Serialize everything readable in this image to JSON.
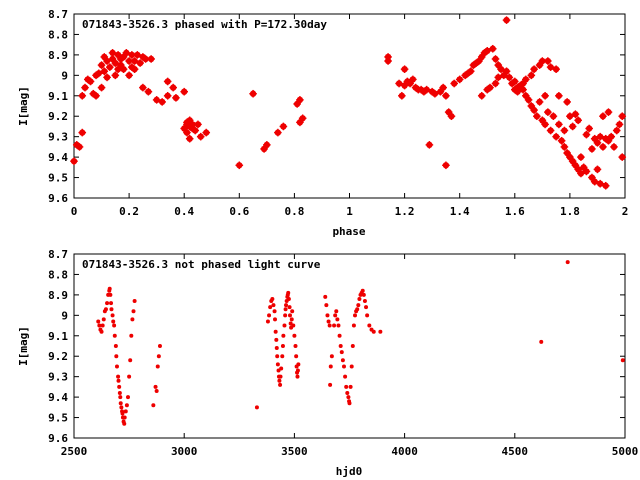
{
  "chart_data": [
    {
      "type": "scatter",
      "title": "071843-3526.3 phased with P=172.30day",
      "xlabel": "phase",
      "ylabel": "I[mag]",
      "xlim": [
        0,
        2
      ],
      "ylim": [
        9.6,
        8.7
      ],
      "y_inverted": true,
      "grid": false,
      "xticks": [
        "0",
        "0.2",
        "0.4",
        "0.6",
        "0.8",
        "1",
        "1.2",
        "1.4",
        "1.6",
        "1.8",
        "2"
      ],
      "yticks": [
        "8.7",
        "8.8",
        "8.9",
        "9",
        "9.1",
        "9.2",
        "9.3",
        "9.4",
        "9.5",
        "9.6"
      ],
      "marker_color": "#ee0000",
      "points": [
        [
          0.0,
          9.42
        ],
        [
          0.01,
          9.34
        ],
        [
          0.02,
          9.35
        ],
        [
          0.03,
          9.28
        ],
        [
          0.03,
          9.1
        ],
        [
          0.04,
          9.06
        ],
        [
          0.05,
          9.02
        ],
        [
          0.06,
          9.03
        ],
        [
          0.07,
          9.09
        ],
        [
          0.08,
          9.0
        ],
        [
          0.08,
          9.1
        ],
        [
          0.09,
          8.99
        ],
        [
          0.1,
          9.06
        ],
        [
          0.1,
          8.95
        ],
        [
          0.11,
          8.98
        ],
        [
          0.11,
          8.91
        ],
        [
          0.12,
          9.01
        ],
        [
          0.12,
          8.93
        ],
        [
          0.13,
          8.96
        ],
        [
          0.14,
          8.92
        ],
        [
          0.14,
          8.89
        ],
        [
          0.15,
          9.0
        ],
        [
          0.15,
          8.94
        ],
        [
          0.16,
          8.9
        ],
        [
          0.16,
          8.97
        ],
        [
          0.17,
          8.95
        ],
        [
          0.17,
          8.92
        ],
        [
          0.18,
          8.91
        ],
        [
          0.18,
          8.97
        ],
        [
          0.19,
          8.89
        ],
        [
          0.2,
          8.93
        ],
        [
          0.2,
          9.0
        ],
        [
          0.21,
          8.96
        ],
        [
          0.21,
          8.9
        ],
        [
          0.22,
          8.93
        ],
        [
          0.22,
          8.97
        ],
        [
          0.23,
          8.9
        ],
        [
          0.24,
          8.94
        ],
        [
          0.25,
          8.91
        ],
        [
          0.25,
          9.06
        ],
        [
          0.26,
          8.92
        ],
        [
          0.27,
          9.08
        ],
        [
          0.28,
          8.92
        ],
        [
          0.3,
          9.12
        ],
        [
          0.32,
          9.13
        ],
        [
          0.34,
          9.1
        ],
        [
          0.34,
          9.03
        ],
        [
          0.36,
          9.06
        ],
        [
          0.37,
          9.11
        ],
        [
          0.4,
          9.08
        ],
        [
          0.4,
          9.26
        ],
        [
          0.41,
          9.23
        ],
        [
          0.41,
          9.28
        ],
        [
          0.41,
          9.24
        ],
        [
          0.42,
          9.25
        ],
        [
          0.42,
          9.31
        ],
        [
          0.42,
          9.22
        ],
        [
          0.43,
          9.26
        ],
        [
          0.43,
          9.24
        ],
        [
          0.44,
          9.27
        ],
        [
          0.45,
          9.24
        ],
        [
          0.46,
          9.3
        ],
        [
          0.48,
          9.28
        ],
        [
          0.6,
          9.44
        ],
        [
          0.65,
          9.09
        ],
        [
          0.69,
          9.36
        ],
        [
          0.7,
          9.34
        ],
        [
          0.74,
          9.28
        ],
        [
          0.76,
          9.25
        ],
        [
          0.81,
          9.14
        ],
        [
          0.82,
          9.23
        ],
        [
          0.82,
          9.12
        ],
        [
          0.83,
          9.21
        ],
        [
          1.14,
          8.91
        ],
        [
          1.14,
          8.93
        ],
        [
          1.18,
          9.04
        ],
        [
          1.19,
          9.1
        ],
        [
          1.2,
          8.97
        ],
        [
          1.2,
          9.05
        ],
        [
          1.21,
          9.03
        ],
        [
          1.22,
          9.04
        ],
        [
          1.23,
          9.02
        ],
        [
          1.24,
          9.06
        ],
        [
          1.25,
          9.07
        ],
        [
          1.26,
          9.07
        ],
        [
          1.27,
          9.08
        ],
        [
          1.28,
          9.07
        ],
        [
          1.29,
          9.34
        ],
        [
          1.3,
          9.08
        ],
        [
          1.31,
          9.09
        ],
        [
          1.33,
          9.08
        ],
        [
          1.34,
          9.06
        ],
        [
          1.35,
          9.1
        ],
        [
          1.35,
          9.44
        ],
        [
          1.36,
          9.18
        ],
        [
          1.37,
          9.2
        ],
        [
          1.38,
          9.04
        ],
        [
          1.4,
          9.02
        ],
        [
          1.42,
          9.0
        ],
        [
          1.43,
          8.99
        ],
        [
          1.44,
          8.98
        ],
        [
          1.45,
          8.95
        ],
        [
          1.46,
          8.94
        ],
        [
          1.47,
          8.93
        ],
        [
          1.48,
          8.91
        ],
        [
          1.48,
          9.1
        ],
        [
          1.49,
          8.89
        ],
        [
          1.5,
          9.07
        ],
        [
          1.5,
          8.88
        ],
        [
          1.51,
          9.06
        ],
        [
          1.52,
          8.87
        ],
        [
          1.53,
          9.04
        ],
        [
          1.53,
          8.92
        ],
        [
          1.54,
          8.95
        ],
        [
          1.54,
          9.01
        ],
        [
          1.55,
          8.97
        ],
        [
          1.56,
          9.0
        ],
        [
          1.57,
          8.98
        ],
        [
          1.57,
          8.73
        ],
        [
          1.58,
          9.01
        ],
        [
          1.59,
          9.04
        ],
        [
          1.6,
          9.07
        ],
        [
          1.6,
          9.03
        ],
        [
          1.61,
          9.06
        ],
        [
          1.61,
          9.08
        ],
        [
          1.62,
          9.05
        ],
        [
          1.63,
          9.07
        ],
        [
          1.63,
          9.04
        ],
        [
          1.64,
          9.1
        ],
        [
          1.64,
          9.02
        ],
        [
          1.65,
          9.12
        ],
        [
          1.66,
          9.15
        ],
        [
          1.66,
          9.0
        ],
        [
          1.67,
          9.17
        ],
        [
          1.67,
          8.97
        ],
        [
          1.68,
          9.2
        ],
        [
          1.69,
          8.95
        ],
        [
          1.69,
          9.13
        ],
        [
          1.7,
          9.22
        ],
        [
          1.7,
          8.93
        ],
        [
          1.71,
          9.24
        ],
        [
          1.71,
          9.1
        ],
        [
          1.72,
          8.93
        ],
        [
          1.72,
          9.18
        ],
        [
          1.73,
          9.27
        ],
        [
          1.73,
          8.96
        ],
        [
          1.74,
          9.2
        ],
        [
          1.75,
          9.3
        ],
        [
          1.75,
          8.97
        ],
        [
          1.76,
          9.24
        ],
        [
          1.76,
          9.1
        ],
        [
          1.77,
          9.32
        ],
        [
          1.78,
          9.27
        ],
        [
          1.78,
          9.35
        ],
        [
          1.79,
          9.38
        ],
        [
          1.79,
          9.13
        ],
        [
          1.8,
          9.4
        ],
        [
          1.8,
          9.2
        ],
        [
          1.81,
          9.42
        ],
        [
          1.81,
          9.25
        ],
        [
          1.82,
          9.44
        ],
        [
          1.82,
          9.19
        ],
        [
          1.83,
          9.46
        ],
        [
          1.83,
          9.22
        ],
        [
          1.84,
          9.4
        ],
        [
          1.84,
          9.48
        ],
        [
          1.85,
          9.45
        ],
        [
          1.86,
          9.29
        ],
        [
          1.86,
          9.47
        ],
        [
          1.87,
          9.26
        ],
        [
          1.88,
          9.5
        ],
        [
          1.88,
          9.36
        ],
        [
          1.89,
          9.31
        ],
        [
          1.89,
          9.52
        ],
        [
          1.9,
          9.33
        ],
        [
          1.9,
          9.46
        ],
        [
          1.91,
          9.53
        ],
        [
          1.91,
          9.3
        ],
        [
          1.92,
          9.35
        ],
        [
          1.92,
          9.2
        ],
        [
          1.93,
          9.31
        ],
        [
          1.93,
          9.54
        ],
        [
          1.94,
          9.32
        ],
        [
          1.94,
          9.18
        ],
        [
          1.95,
          9.3
        ],
        [
          1.96,
          9.35
        ],
        [
          1.97,
          9.27
        ],
        [
          1.98,
          9.24
        ],
        [
          1.99,
          9.4
        ],
        [
          1.99,
          9.2
        ]
      ]
    },
    {
      "type": "scatter",
      "title": "071843-3526.3 not phased light curve",
      "xlabel": "hjd0",
      "ylabel": "I[mag]",
      "xlim": [
        2500,
        5000
      ],
      "ylim": [
        9.6,
        8.7
      ],
      "y_inverted": true,
      "grid": false,
      "xticks": [
        "2500",
        "3000",
        "3500",
        "4000",
        "4500",
        "5000"
      ],
      "yticks": [
        "8.7",
        "8.8",
        "8.9",
        "9",
        "9.1",
        "9.2",
        "9.3",
        "9.4",
        "9.5",
        "9.6"
      ],
      "marker_color": "#ee0000",
      "points": [
        [
          2610,
          9.03
        ],
        [
          2615,
          9.05
        ],
        [
          2620,
          9.07
        ],
        [
          2625,
          9.08
        ],
        [
          2630,
          9.05
        ],
        [
          2635,
          9.02
        ],
        [
          2640,
          8.98
        ],
        [
          2645,
          8.97
        ],
        [
          2650,
          8.94
        ],
        [
          2655,
          8.9
        ],
        [
          2660,
          8.88
        ],
        [
          2662,
          8.87
        ],
        [
          2665,
          8.9
        ],
        [
          2668,
          8.94
        ],
        [
          2670,
          8.97
        ],
        [
          2675,
          9.0
        ],
        [
          2678,
          9.03
        ],
        [
          2682,
          9.05
        ],
        [
          2685,
          9.1
        ],
        [
          2690,
          9.15
        ],
        [
          2692,
          9.2
        ],
        [
          2695,
          9.25
        ],
        [
          2700,
          9.3
        ],
        [
          2702,
          9.32
        ],
        [
          2705,
          9.35
        ],
        [
          2708,
          9.38
        ],
        [
          2710,
          9.4
        ],
        [
          2712,
          9.43
        ],
        [
          2715,
          9.45
        ],
        [
          2718,
          9.47
        ],
        [
          2720,
          9.48
        ],
        [
          2722,
          9.5
        ],
        [
          2725,
          9.52
        ],
        [
          2728,
          9.53
        ],
        [
          2730,
          9.5
        ],
        [
          2735,
          9.47
        ],
        [
          2740,
          9.44
        ],
        [
          2745,
          9.4
        ],
        [
          2750,
          9.3
        ],
        [
          2755,
          9.22
        ],
        [
          2760,
          9.1
        ],
        [
          2765,
          9.02
        ],
        [
          2770,
          8.98
        ],
        [
          2775,
          8.93
        ],
        [
          2860,
          9.44
        ],
        [
          2870,
          9.35
        ],
        [
          2875,
          9.37
        ],
        [
          2880,
          9.25
        ],
        [
          2885,
          9.2
        ],
        [
          2890,
          9.15
        ],
        [
          3330,
          9.45
        ],
        [
          3380,
          9.03
        ],
        [
          3385,
          9.0
        ],
        [
          3390,
          8.96
        ],
        [
          3395,
          8.93
        ],
        [
          3400,
          8.92
        ],
        [
          3405,
          8.95
        ],
        [
          3410,
          8.98
        ],
        [
          3412,
          9.02
        ],
        [
          3415,
          9.08
        ],
        [
          3418,
          9.12
        ],
        [
          3420,
          9.16
        ],
        [
          3422,
          9.2
        ],
        [
          3425,
          9.24
        ],
        [
          3428,
          9.27
        ],
        [
          3430,
          9.3
        ],
        [
          3432,
          9.32
        ],
        [
          3435,
          9.34
        ],
        [
          3437,
          9.3
        ],
        [
          3440,
          9.26
        ],
        [
          3445,
          9.2
        ],
        [
          3448,
          9.15
        ],
        [
          3450,
          9.1
        ],
        [
          3455,
          9.05
        ],
        [
          3458,
          9.0
        ],
        [
          3460,
          8.97
        ],
        [
          3462,
          8.95
        ],
        [
          3465,
          8.93
        ],
        [
          3468,
          8.91
        ],
        [
          3470,
          8.9
        ],
        [
          3472,
          8.89
        ],
        [
          3475,
          8.92
        ],
        [
          3478,
          8.96
        ],
        [
          3480,
          9.0
        ],
        [
          3483,
          9.04
        ],
        [
          3485,
          9.06
        ],
        [
          3488,
          9.02
        ],
        [
          3490,
          8.98
        ],
        [
          3495,
          9.05
        ],
        [
          3500,
          9.1
        ],
        [
          3505,
          9.15
        ],
        [
          3508,
          9.2
        ],
        [
          3510,
          9.25
        ],
        [
          3512,
          9.28
        ],
        [
          3514,
          9.3
        ],
        [
          3516,
          9.27
        ],
        [
          3518,
          9.24
        ],
        [
          3640,
          8.91
        ],
        [
          3645,
          8.95
        ],
        [
          3650,
          9.0
        ],
        [
          3655,
          9.03
        ],
        [
          3660,
          9.05
        ],
        [
          3662,
          9.34
        ],
        [
          3665,
          9.25
        ],
        [
          3670,
          9.2
        ],
        [
          3680,
          9.05
        ],
        [
          3685,
          9.0
        ],
        [
          3690,
          8.98
        ],
        [
          3695,
          9.02
        ],
        [
          3700,
          9.05
        ],
        [
          3705,
          9.1
        ],
        [
          3710,
          9.15
        ],
        [
          3715,
          9.18
        ],
        [
          3720,
          9.22
        ],
        [
          3725,
          9.25
        ],
        [
          3730,
          9.3
        ],
        [
          3735,
          9.35
        ],
        [
          3740,
          9.38
        ],
        [
          3745,
          9.4
        ],
        [
          3748,
          9.42
        ],
        [
          3750,
          9.43
        ],
        [
          3755,
          9.35
        ],
        [
          3760,
          9.25
        ],
        [
          3765,
          9.15
        ],
        [
          3770,
          9.05
        ],
        [
          3775,
          9.0
        ],
        [
          3780,
          8.98
        ],
        [
          3785,
          8.97
        ],
        [
          3790,
          8.95
        ],
        [
          3795,
          8.92
        ],
        [
          3800,
          8.9
        ],
        [
          3805,
          8.89
        ],
        [
          3810,
          8.88
        ],
        [
          3815,
          8.9
        ],
        [
          3820,
          8.93
        ],
        [
          3825,
          8.96
        ],
        [
          3830,
          9.0
        ],
        [
          3840,
          9.05
        ],
        [
          3850,
          9.07
        ],
        [
          3860,
          9.08
        ],
        [
          3890,
          9.08
        ],
        [
          4620,
          9.13
        ],
        [
          4740,
          8.74
        ],
        [
          4990,
          9.22
        ]
      ]
    }
  ]
}
